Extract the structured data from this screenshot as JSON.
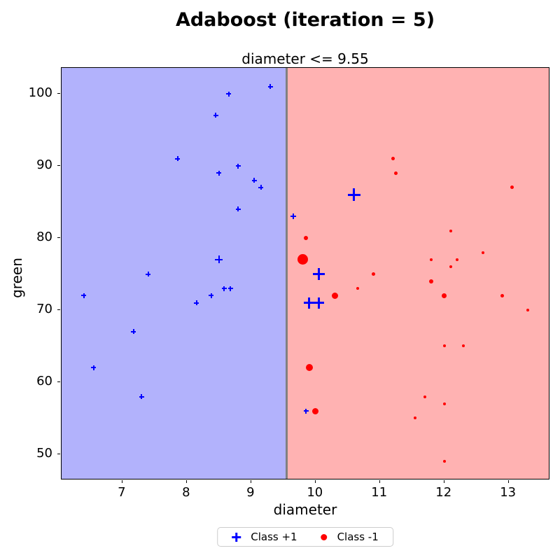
{
  "title": "Adaboost (iteration = 5)",
  "axes_title": "diameter <= 9.55",
  "legend": {
    "class_pos_label": "Class +1",
    "class_neg_label": "Class -1"
  },
  "colors": {
    "class_pos": "#0000ff",
    "class_neg": "#ff0000",
    "region_pos_bg": "#b2b2fc",
    "region_neg_bg": "#ffb2b2",
    "boundary_line": "#808080",
    "text": "#000000"
  },
  "chart_data": {
    "type": "scatter",
    "title": "Adaboost (iteration = 5)",
    "subtitle": "diameter <= 9.55",
    "xlabel": "diameter",
    "ylabel": "green",
    "xlim": [
      6.055,
      13.645
    ],
    "ylim": [
      46.4,
      103.6
    ],
    "xticks": [
      7,
      8,
      9,
      10,
      11,
      12,
      13
    ],
    "yticks": [
      50,
      60,
      70,
      80,
      90,
      100
    ],
    "grid": false,
    "legend_position": "bottom-center-outside",
    "decision_boundary_x": 9.55,
    "regions": [
      {
        "label": "predicted +1",
        "x_range": [
          6.055,
          9.55
        ],
        "color_key": "region_pos_bg"
      },
      {
        "label": "predicted -1",
        "x_range": [
          9.55,
          13.645
        ],
        "color_key": "region_neg_bg"
      }
    ],
    "series": [
      {
        "name": "Class +1",
        "marker": "plus",
        "color_key": "class_pos",
        "points": [
          {
            "x": 9.3,
            "y": 101,
            "size": 7
          },
          {
            "x": 8.65,
            "y": 100,
            "size": 7
          },
          {
            "x": 8.45,
            "y": 97,
            "size": 7
          },
          {
            "x": 7.86,
            "y": 91,
            "size": 7
          },
          {
            "x": 8.8,
            "y": 90,
            "size": 7
          },
          {
            "x": 8.5,
            "y": 89,
            "size": 7
          },
          {
            "x": 9.05,
            "y": 88,
            "size": 7
          },
          {
            "x": 9.15,
            "y": 87,
            "size": 7
          },
          {
            "x": 8.8,
            "y": 84,
            "size": 7
          },
          {
            "x": 9.65,
            "y": 83,
            "size": 8
          },
          {
            "x": 10.6,
            "y": 86,
            "size": 18
          },
          {
            "x": 8.5,
            "y": 77,
            "size": 11
          },
          {
            "x": 7.4,
            "y": 75,
            "size": 7
          },
          {
            "x": 10.05,
            "y": 75,
            "size": 17
          },
          {
            "x": 8.58,
            "y": 73,
            "size": 7
          },
          {
            "x": 8.68,
            "y": 73,
            "size": 7
          },
          {
            "x": 6.4,
            "y": 72,
            "size": 7
          },
          {
            "x": 8.38,
            "y": 72,
            "size": 7
          },
          {
            "x": 8.15,
            "y": 71,
            "size": 7
          },
          {
            "x": 9.9,
            "y": 71,
            "size": 16
          },
          {
            "x": 10.05,
            "y": 71,
            "size": 16
          },
          {
            "x": 7.17,
            "y": 67,
            "size": 7
          },
          {
            "x": 6.55,
            "y": 62,
            "size": 7
          },
          {
            "x": 7.3,
            "y": 58,
            "size": 7
          },
          {
            "x": 9.85,
            "y": 56,
            "size": 7
          }
        ]
      },
      {
        "name": "Class -1",
        "marker": "circle",
        "color_key": "class_neg",
        "points": [
          {
            "x": 11.2,
            "y": 91,
            "size": 5
          },
          {
            "x": 11.25,
            "y": 89,
            "size": 5
          },
          {
            "x": 13.05,
            "y": 87,
            "size": 5
          },
          {
            "x": 12.1,
            "y": 81,
            "size": 4
          },
          {
            "x": 9.85,
            "y": 80,
            "size": 6
          },
          {
            "x": 12.6,
            "y": 78,
            "size": 4
          },
          {
            "x": 9.8,
            "y": 77,
            "size": 15
          },
          {
            "x": 11.8,
            "y": 77,
            "size": 4
          },
          {
            "x": 12.2,
            "y": 77,
            "size": 4
          },
          {
            "x": 12.1,
            "y": 76,
            "size": 4
          },
          {
            "x": 10.9,
            "y": 75,
            "size": 5
          },
          {
            "x": 11.8,
            "y": 74,
            "size": 6
          },
          {
            "x": 10.65,
            "y": 73,
            "size": 4
          },
          {
            "x": 10.3,
            "y": 72,
            "size": 9
          },
          {
            "x": 12.0,
            "y": 72,
            "size": 7
          },
          {
            "x": 12.9,
            "y": 72,
            "size": 5
          },
          {
            "x": 13.3,
            "y": 70,
            "size": 4
          },
          {
            "x": 12.0,
            "y": 65,
            "size": 4
          },
          {
            "x": 12.3,
            "y": 65,
            "size": 4
          },
          {
            "x": 9.9,
            "y": 62,
            "size": 10
          },
          {
            "x": 11.7,
            "y": 58,
            "size": 4
          },
          {
            "x": 12.0,
            "y": 57,
            "size": 4
          },
          {
            "x": 10.0,
            "y": 56,
            "size": 9
          },
          {
            "x": 11.55,
            "y": 55,
            "size": 4
          },
          {
            "x": 12.0,
            "y": 49,
            "size": 4
          }
        ]
      }
    ]
  }
}
